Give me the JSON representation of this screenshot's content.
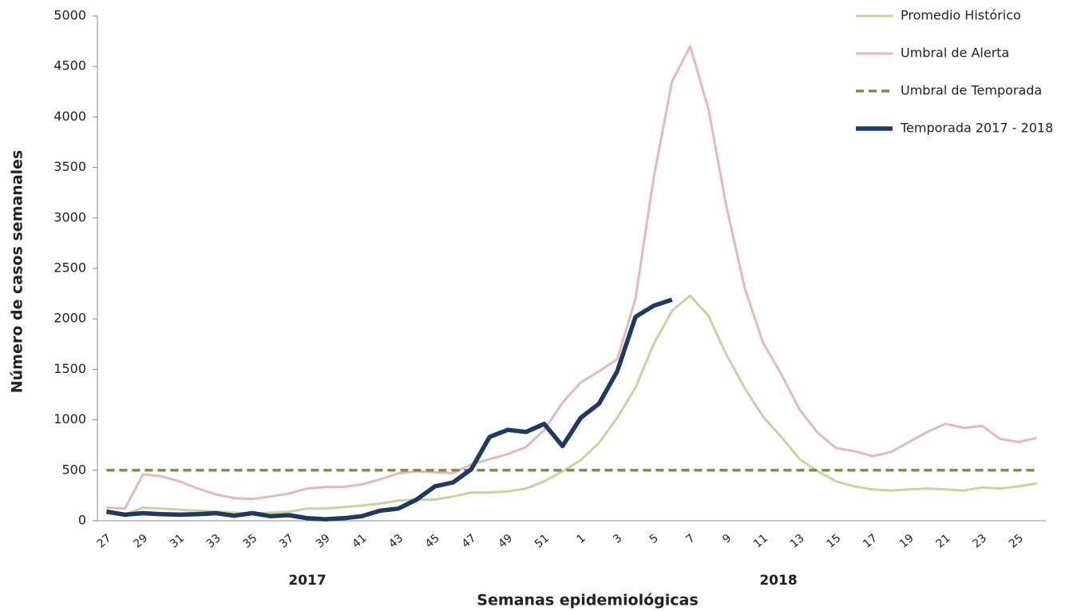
{
  "chart_data": {
    "type": "line",
    "x_label": "Semanas epidemiológicas",
    "y_label": "Número de casos semanales",
    "year_labels": [
      "2017",
      "2018"
    ],
    "categories": [
      "27",
      null,
      "29",
      null,
      "31",
      null,
      "33",
      null,
      "35",
      null,
      "37",
      null,
      "39",
      null,
      "41",
      null,
      "43",
      null,
      "45",
      null,
      "47",
      null,
      "49",
      null,
      "51",
      null,
      "1",
      null,
      "3",
      null,
      "5",
      null,
      "7",
      null,
      "9",
      null,
      "11",
      null,
      "13",
      null,
      "15",
      null,
      "17",
      null,
      "19",
      null,
      "21",
      null,
      "23",
      null,
      "25",
      null
    ],
    "ylim": [
      0,
      5000
    ],
    "yticks": [
      0,
      500,
      1000,
      1500,
      2000,
      2500,
      3000,
      3500,
      4000,
      4500,
      5000
    ],
    "grid": false,
    "legend": "top-right",
    "series": [
      {
        "name": "Promedio Histórico",
        "color": "#c3d69b",
        "line_style": "solid",
        "values": [
          80,
          60,
          130,
          120,
          110,
          100,
          90,
          80,
          70,
          80,
          90,
          120,
          120,
          135,
          150,
          170,
          200,
          210,
          210,
          240,
          280,
          280,
          290,
          320,
          390,
          490,
          600,
          770,
          1020,
          1320,
          1750,
          2080,
          2230,
          2030,
          1640,
          1310,
          1030,
          830,
          610,
          490,
          390,
          340,
          310,
          300,
          310,
          320,
          310,
          300,
          330,
          320,
          340,
          370
        ]
      },
      {
        "name": "Umbral de Alerta",
        "color": "#e6b9b8",
        "line_style": "solid",
        "values": [
          130,
          120,
          460,
          440,
          390,
          320,
          260,
          225,
          215,
          240,
          270,
          320,
          335,
          335,
          360,
          410,
          470,
          490,
          480,
          470,
          560,
          610,
          660,
          730,
          900,
          1170,
          1370,
          1480,
          1600,
          2200,
          3400,
          4350,
          4700,
          4080,
          3100,
          2300,
          1760,
          1450,
          1100,
          870,
          720,
          690,
          640,
          680,
          780,
          880,
          960,
          920,
          940,
          810,
          780,
          820
        ]
      },
      {
        "name": "Umbral de Temporada",
        "color": "#77933c",
        "line_style": "dashed",
        "values": [
          500,
          500,
          500,
          500,
          500,
          500,
          500,
          500,
          500,
          500,
          500,
          500,
          500,
          500,
          500,
          500,
          500,
          500,
          500,
          500,
          500,
          500,
          500,
          500,
          500,
          500,
          500,
          500,
          500,
          500,
          500,
          500,
          500,
          500,
          500,
          500,
          500,
          500,
          500,
          500,
          500,
          500,
          500,
          500,
          500,
          500,
          500,
          500,
          500,
          500,
          500,
          500
        ]
      },
      {
        "name": "Temporada 2017 - 2018",
        "color": "#1f3864",
        "line_style": "solid",
        "values": [
          90,
          60,
          75,
          65,
          60,
          65,
          75,
          50,
          75,
          45,
          55,
          25,
          15,
          25,
          45,
          100,
          120,
          210,
          340,
          380,
          510,
          830,
          900,
          880,
          960,
          740,
          1020,
          1160,
          1480,
          2020,
          2130,
          2190,
          null,
          null,
          null,
          null,
          null,
          null,
          null,
          null,
          null,
          null,
          null,
          null,
          null,
          null,
          null,
          null,
          null,
          null,
          null,
          null
        ]
      }
    ]
  }
}
